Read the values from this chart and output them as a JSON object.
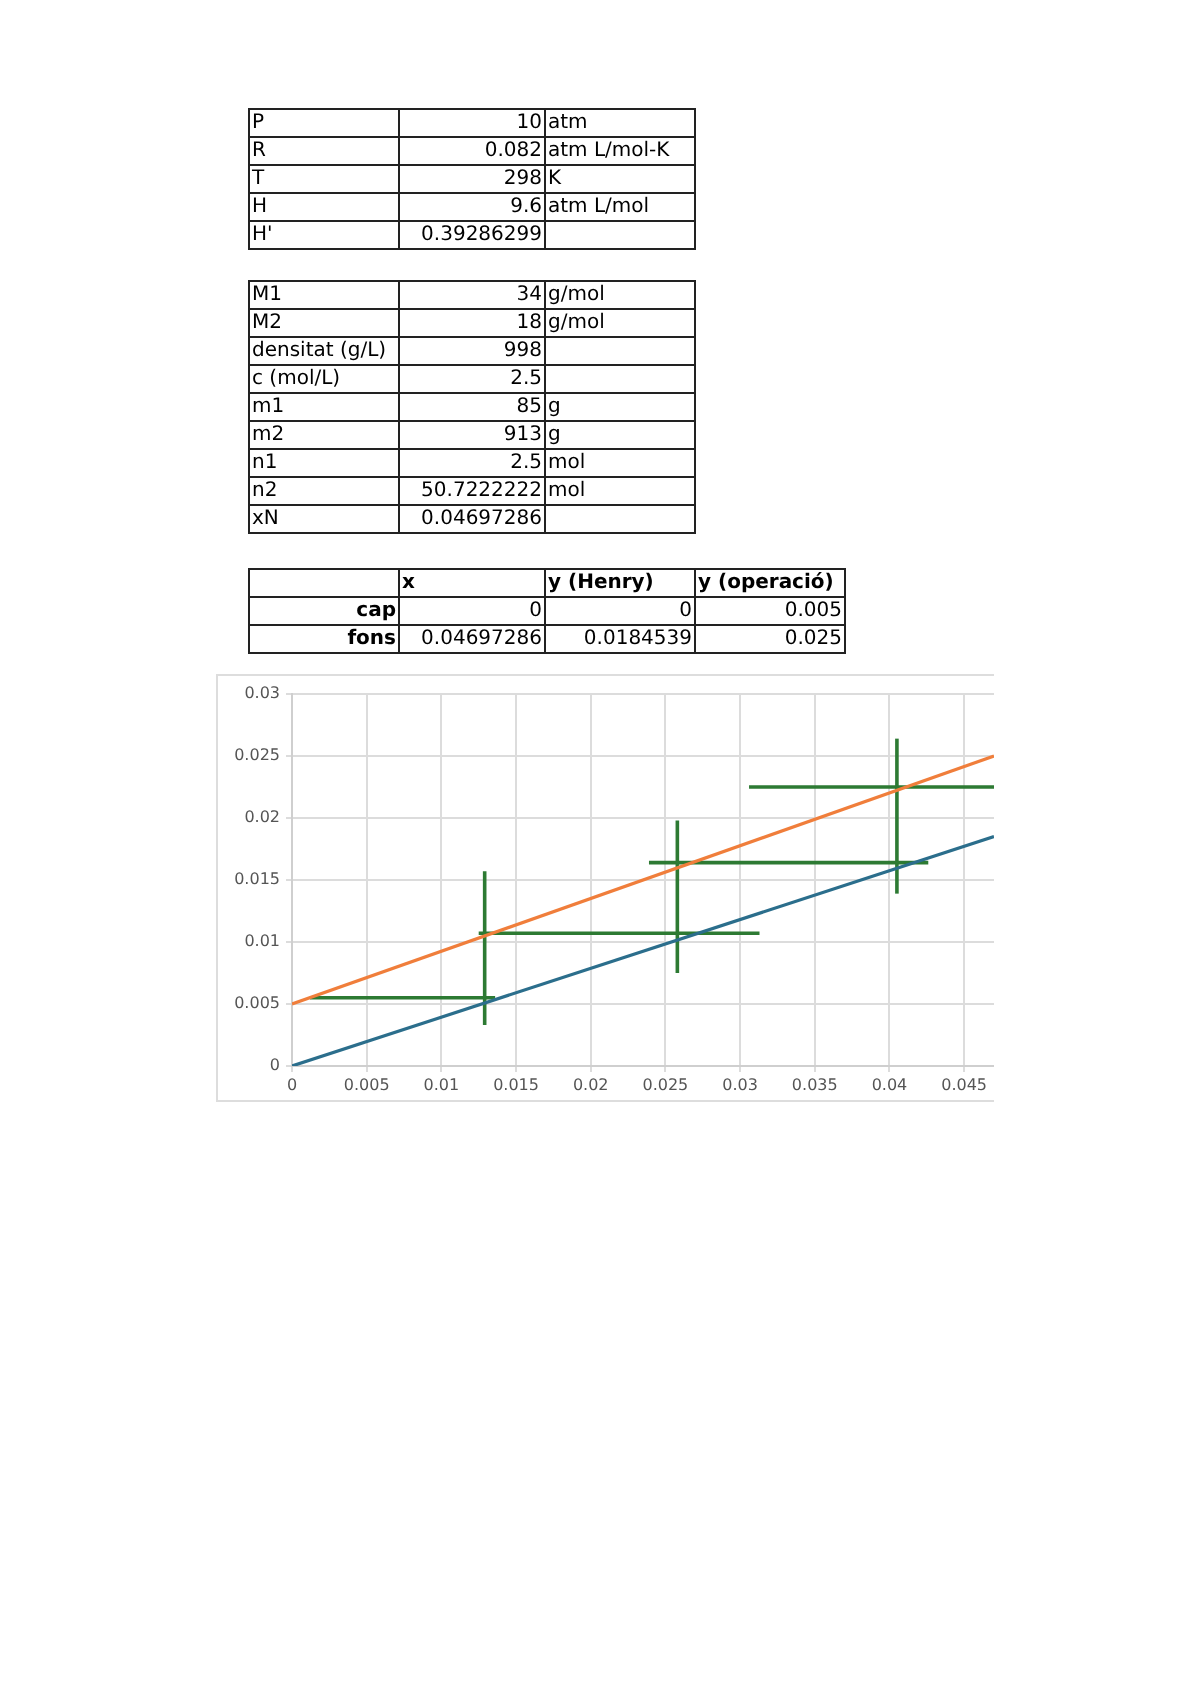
{
  "chart_data": [
    {
      "type": "other",
      "y_categories": [
        "P",
        "R",
        "T",
        "H",
        "H'"
      ],
      "cell_labels": [
        [
          "10"
        ],
        [
          "0.082"
        ],
        [
          "298"
        ],
        [
          "9.6"
        ],
        [
          "0.39286299"
        ]
      ],
      "y2_categories": [
        "atm",
        "atm L/mol-K",
        "K",
        "atm L/mol",
        null
      ]
    },
    {
      "type": "other",
      "y_categories": [
        "M1",
        "M2",
        "densitat (g/L)",
        "c (mol/L)",
        "m1",
        "m2",
        "n1",
        "n2",
        "xN"
      ],
      "cell_labels": [
        [
          "34"
        ],
        [
          "18"
        ],
        [
          "998"
        ],
        [
          "2.5"
        ],
        [
          "85"
        ],
        [
          "913"
        ],
        [
          "2.5"
        ],
        [
          "50.7222222"
        ],
        [
          "0.04697286"
        ]
      ],
      "y2_categories": [
        "g/mol",
        "g/mol",
        null,
        null,
        "g",
        "g",
        "mol",
        "mol",
        null
      ]
    },
    {
      "type": "other",
      "categories": [
        "x",
        "y (Henry)",
        "y (operació)"
      ],
      "y_categories": [
        "cap",
        "fons"
      ],
      "cell_labels": [
        [
          "0",
          "0",
          "0.005"
        ],
        [
          "0.04697286",
          "0.0184539",
          "0.025"
        ]
      ]
    },
    {
      "type": "line",
      "marker": "none",
      "grid": true,
      "series": [
        {
          "color": "#2b6e8c",
          "x": [
            0,
            0.047
          ],
          "values": [
            0,
            0.0185
          ]
        },
        {
          "color": "#f07e3b",
          "x": [
            0,
            0.047
          ],
          "values": [
            0.005,
            0.025
          ]
        },
        {
          "color": "#2d7a33",
          "x": [
            0.0012,
            0.0136
          ],
          "values": [
            0.0055,
            0.0055
          ]
        },
        {
          "color": "#2d7a33",
          "x": [
            0.0129,
            0.0129
          ],
          "values": [
            0.0033,
            0.0157
          ]
        },
        {
          "color": "#2d7a33",
          "x": [
            0.0125,
            0.0313
          ],
          "values": [
            0.0107,
            0.0107
          ]
        },
        {
          "color": "#2d7a33",
          "x": [
            0.0258,
            0.0258
          ],
          "values": [
            0.0075,
            0.0198
          ]
        },
        {
          "color": "#2d7a33",
          "x": [
            0.0239,
            0.0426
          ],
          "values": [
            0.0164,
            0.0164
          ]
        },
        {
          "color": "#2d7a33",
          "x": [
            0.0405,
            0.0405
          ],
          "values": [
            0.0139,
            0.0264
          ]
        },
        {
          "color": "#2d7a33",
          "x": [
            0.0306,
            0.047
          ],
          "values": [
            0.0225,
            0.0225
          ]
        }
      ],
      "xlim": [
        0,
        0.047
      ],
      "xticks": [
        0,
        0.005,
        0.01,
        0.015,
        0.02,
        0.025,
        0.03,
        0.035,
        0.04,
        0.045
      ],
      "ylim": [
        0,
        0.03
      ],
      "yticks": [
        0,
        0.005,
        0.01,
        0.015,
        0.02,
        0.025,
        0.03
      ]
    }
  ]
}
